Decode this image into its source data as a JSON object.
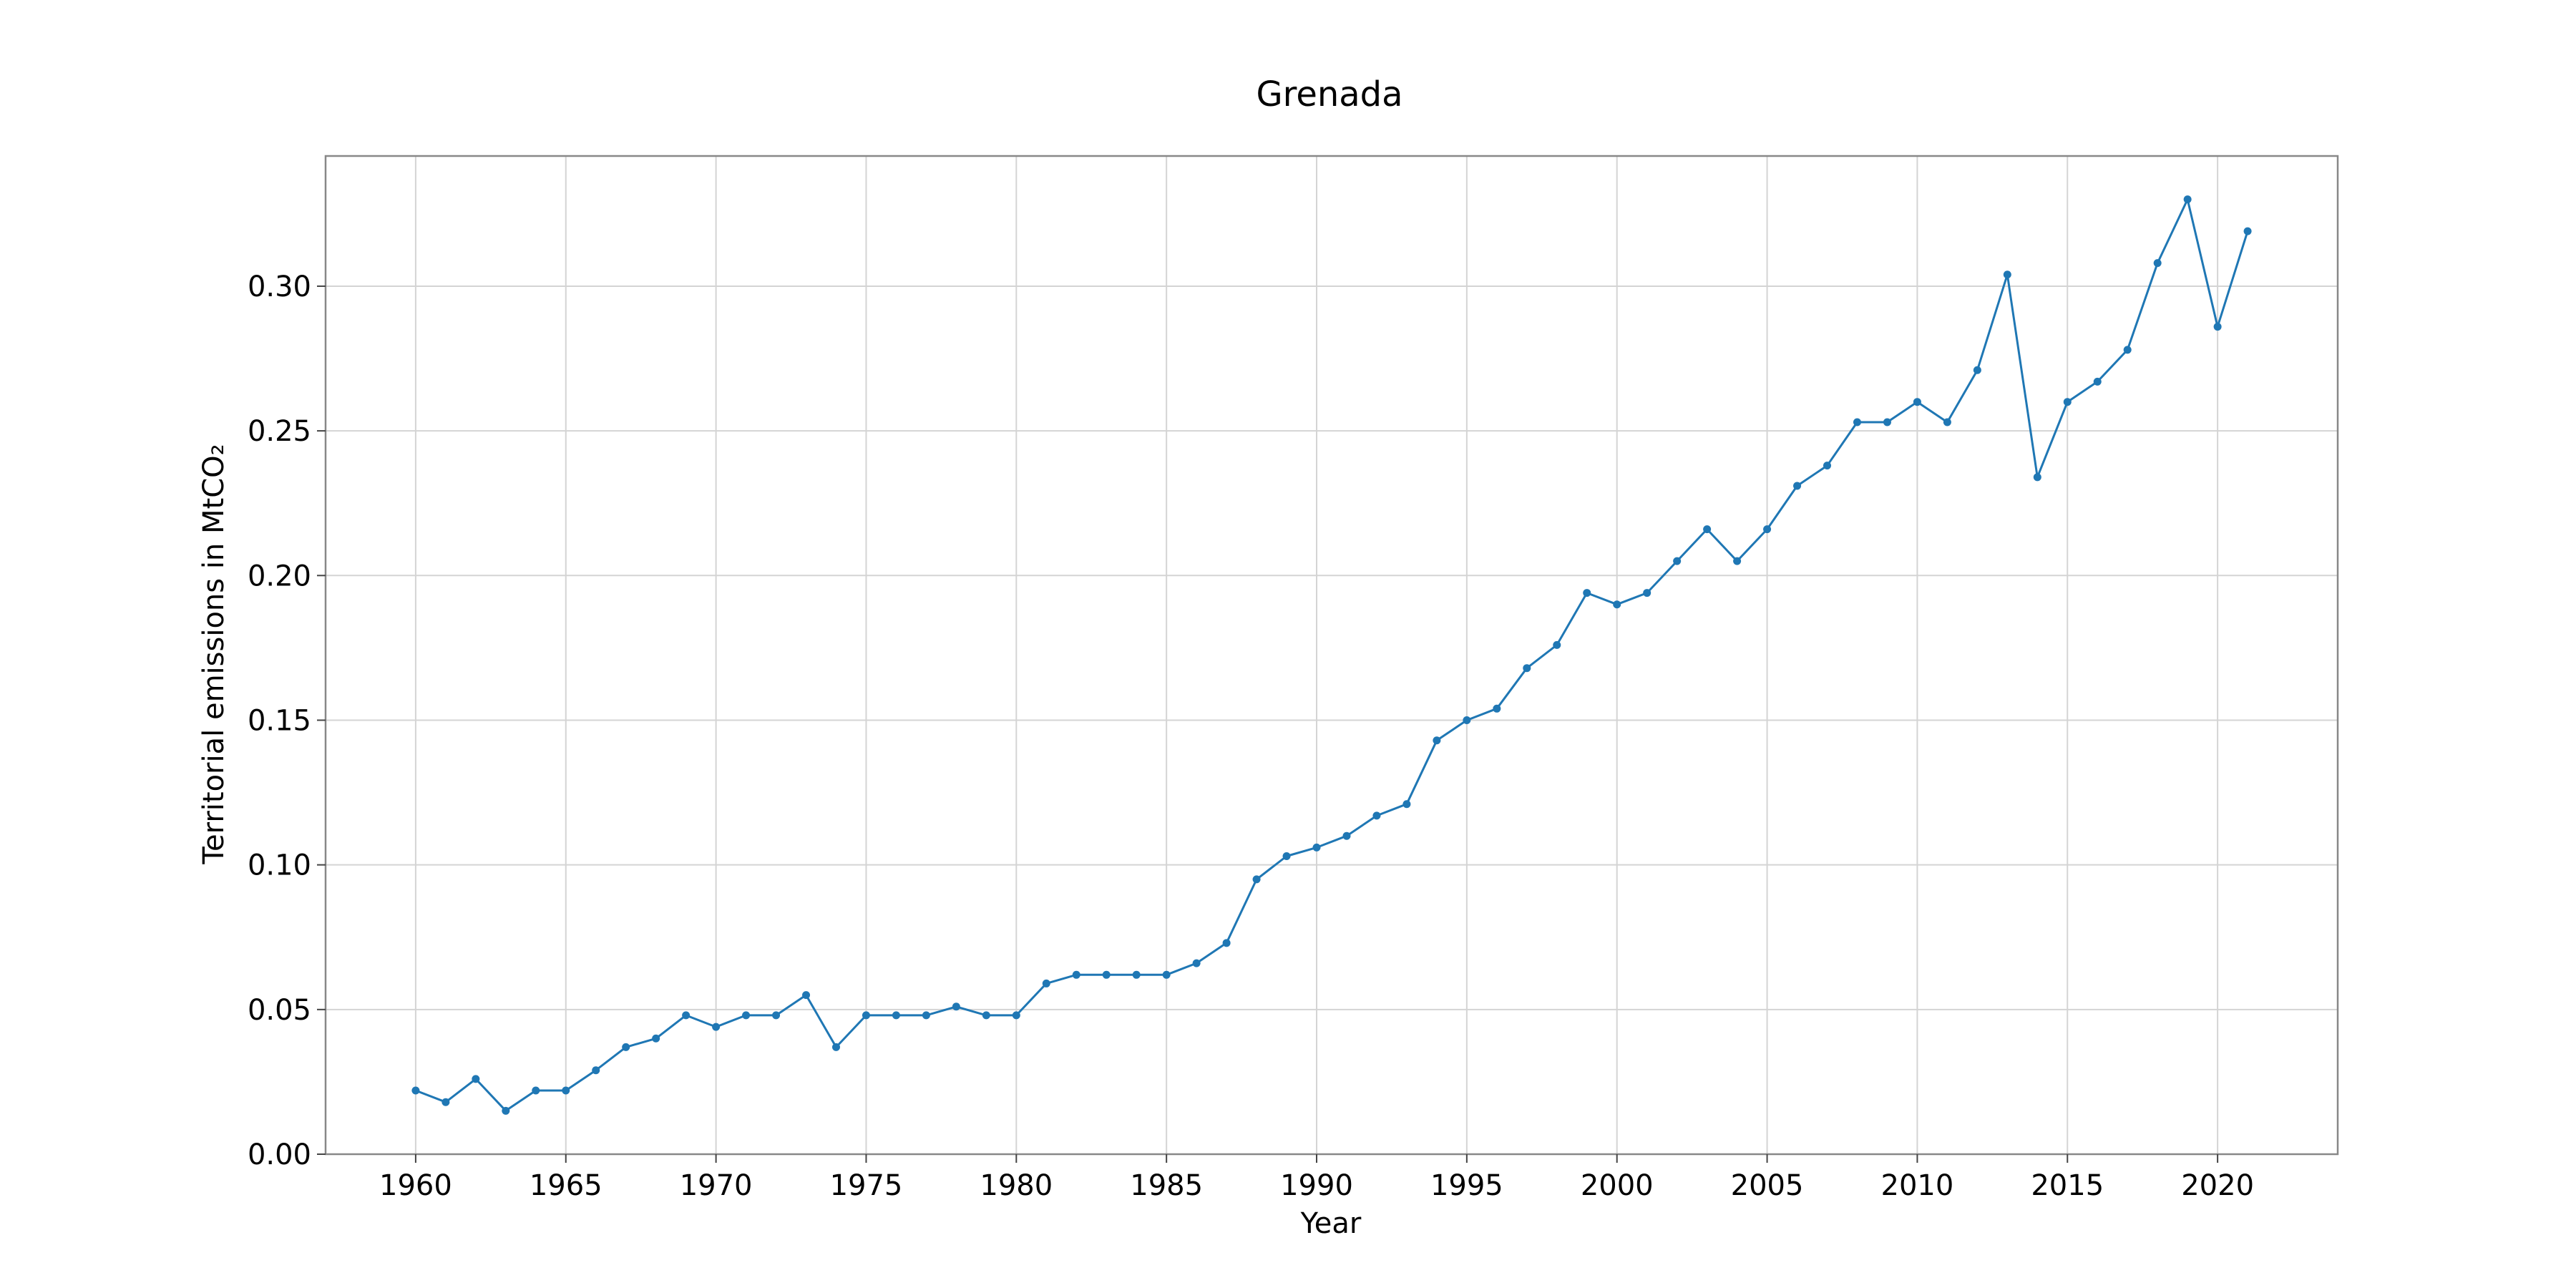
{
  "chart_data": {
    "type": "line",
    "title": "Grenada",
    "xlabel": "Year",
    "ylabel": "Territorial emissions in MtCO₂",
    "xlim": [
      1957,
      2024
    ],
    "ylim": [
      0,
      0.345
    ],
    "x_ticks": [
      1960,
      1965,
      1970,
      1975,
      1980,
      1985,
      1990,
      1995,
      2000,
      2005,
      2010,
      2015,
      2020
    ],
    "y_ticks": [
      0.0,
      0.05,
      0.1,
      0.15,
      0.2,
      0.25,
      0.3
    ],
    "y_tick_labels": [
      "0.00",
      "0.05",
      "0.10",
      "0.15",
      "0.20",
      "0.25",
      "0.30"
    ],
    "grid": true,
    "legend": "none",
    "color": "#1f77b4",
    "x": [
      1960,
      1961,
      1962,
      1963,
      1964,
      1965,
      1966,
      1967,
      1968,
      1969,
      1970,
      1971,
      1972,
      1973,
      1974,
      1975,
      1976,
      1977,
      1978,
      1979,
      1980,
      1981,
      1982,
      1983,
      1984,
      1985,
      1986,
      1987,
      1988,
      1989,
      1990,
      1991,
      1992,
      1993,
      1994,
      1995,
      1996,
      1997,
      1998,
      1999,
      2000,
      2001,
      2002,
      2003,
      2004,
      2005,
      2006,
      2007,
      2008,
      2009,
      2010,
      2011,
      2012,
      2013,
      2014,
      2015,
      2016,
      2017,
      2018,
      2019,
      2020,
      2021
    ],
    "y": [
      0.022,
      0.018,
      0.026,
      0.015,
      0.022,
      0.022,
      0.029,
      0.037,
      0.04,
      0.048,
      0.044,
      0.048,
      0.048,
      0.055,
      0.037,
      0.048,
      0.048,
      0.048,
      0.051,
      0.048,
      0.048,
      0.059,
      0.062,
      0.062,
      0.062,
      0.062,
      0.066,
      0.073,
      0.095,
      0.103,
      0.106,
      0.11,
      0.117,
      0.121,
      0.143,
      0.15,
      0.154,
      0.168,
      0.176,
      0.194,
      0.19,
      0.194,
      0.205,
      0.216,
      0.205,
      0.216,
      0.231,
      0.238,
      0.253,
      0.253,
      0.26,
      0.253,
      0.271,
      0.304,
      0.234,
      0.26,
      0.267,
      0.278,
      0.308,
      0.33,
      0.286,
      0.319
    ]
  }
}
